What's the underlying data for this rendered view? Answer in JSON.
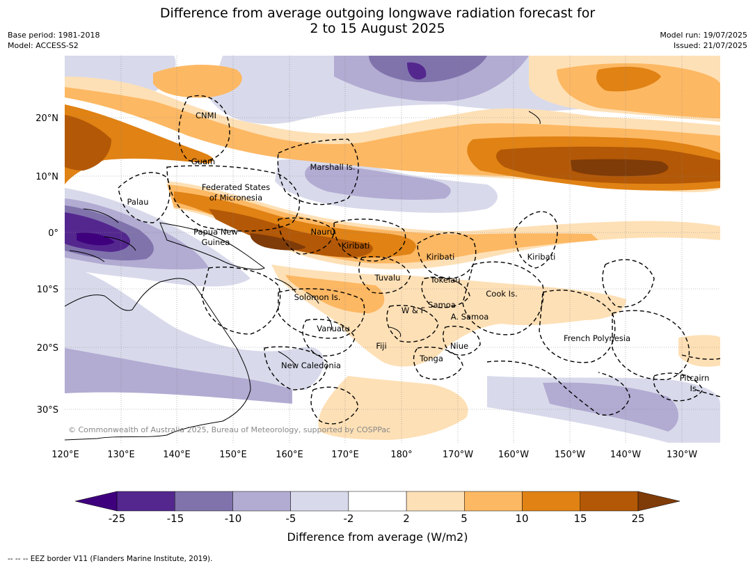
{
  "header": {
    "title_line1": "Difference from average outgoing longwave radiation forecast for",
    "title_line2": "2 to 15 August 2025",
    "base_period": "Base period: 1981-2018",
    "model": "Model: ACCESS-S2",
    "model_run": "Model run: 19/07/2025",
    "issued": "Issued: 21/07/2025"
  },
  "map": {
    "lat_labels": [
      "20°N",
      "10°N",
      "0°",
      "10°S",
      "20°S",
      "30°S"
    ],
    "lon_labels": [
      "120°E",
      "130°E",
      "140°E",
      "150°E",
      "160°E",
      "170°E",
      "180°",
      "170°W",
      "160°W",
      "150°W",
      "140°W",
      "130°W"
    ],
    "region_labels": [
      "CNMI",
      "Guam",
      "Marshall Is.",
      "Palau",
      "Federated States",
      "of Micronesia",
      "Papua New",
      "Guinea",
      "Nauru",
      "Kiribati",
      "Kiribati",
      "Kiribati",
      "Tuvalu",
      "Tokelau",
      "Solomon Is.",
      "Samoa",
      "W & F",
      "A. Samoa",
      "Cook Is.",
      "Vanuatu",
      "Fiji",
      "Niue",
      "French Polynesia",
      "Tonga",
      "New Caledonia",
      "Pitcairn",
      "Is."
    ],
    "copyright": "© Commonwealth of Australia 2025, Bureau of Meteorology, supported by COSPPac",
    "colors": {
      "dark_purple": "#3f007d",
      "purple_1": "#54278f",
      "purple_2": "#8073ac",
      "purple_3": "#b2abd2",
      "purple_4": "#d8daeb",
      "neutral": "#ffffff",
      "orange_1": "#fee0b6",
      "orange_2": "#fdb863",
      "orange_3": "#e08214",
      "orange_4": "#b35806",
      "dark_orange": "#7f3b08"
    }
  },
  "colorbar": {
    "ticks": [
      "-25",
      "-15",
      "-10",
      "-5",
      "-2",
      "2",
      "5",
      "10",
      "15",
      "25"
    ],
    "colors": [
      "#54278f",
      "#8073ac",
      "#b2abd2",
      "#d8daeb",
      "#ffffff",
      "#fee0b6",
      "#fdb863",
      "#e08214",
      "#b35806"
    ],
    "low_extend_color": "#3f007d",
    "high_extend_color": "#7f3b08",
    "label": "Difference from average (W/m2)"
  },
  "footnote": "--  --  -- EEZ border V11 (Flanders Marine Institute, 2019)."
}
